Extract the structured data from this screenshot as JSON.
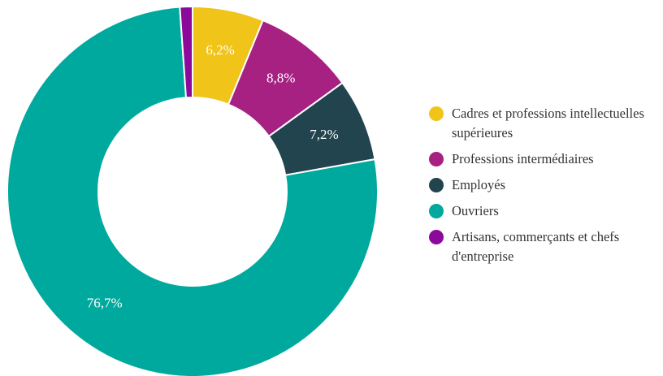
{
  "chart_data": {
    "type": "pie",
    "donut": true,
    "title": "",
    "legend_position": "right",
    "series": [
      {
        "name": "Cadres et professions intellectuelles supérieures",
        "value": 6.2,
        "label": "6,2%",
        "color": "#F0C419"
      },
      {
        "name": "Professions intermédiaires",
        "value": 8.8,
        "label": "8,8%",
        "color": "#A62182"
      },
      {
        "name": "Employés",
        "value": 7.2,
        "label": "7,2%",
        "color": "#22444F"
      },
      {
        "name": "Ouvriers",
        "value": 76.7,
        "label": "76,7%",
        "color": "#00A99D"
      },
      {
        "name": "Artisans, commerçants et chefs d'entreprise",
        "value": 1.1,
        "label": "",
        "color": "#8B0A9B"
      }
    ]
  }
}
